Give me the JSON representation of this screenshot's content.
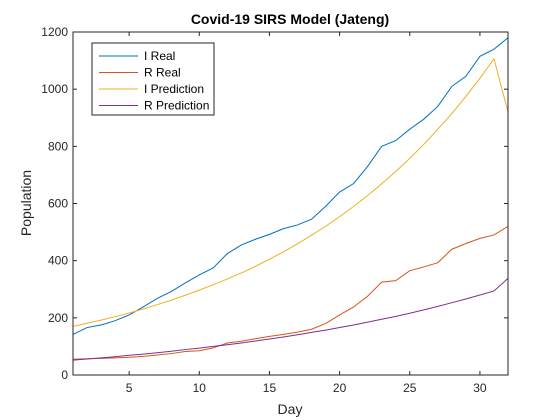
{
  "chart_data": {
    "type": "line",
    "title": "Covid-19 SIRS Model (Jateng)",
    "xlabel": "Day",
    "ylabel": "Population",
    "xlim": [
      1,
      32
    ],
    "ylim": [
      0,
      1200
    ],
    "xticks": [
      5,
      10,
      15,
      20,
      25,
      30
    ],
    "yticks": [
      0,
      200,
      400,
      600,
      800,
      1000,
      1200
    ],
    "grid": false,
    "legend_position": "top-left",
    "x": [
      1,
      2,
      3,
      4,
      5,
      6,
      7,
      8,
      9,
      10,
      11,
      12,
      13,
      14,
      15,
      16,
      17,
      18,
      19,
      20,
      21,
      22,
      23,
      24,
      25,
      26,
      27,
      28,
      29,
      30,
      31,
      32
    ],
    "series": [
      {
        "name": "I Real",
        "color": "#0072bd",
        "values": [
          142,
          166,
          175,
          190,
          210,
          238,
          268,
          292,
          322,
          350,
          375,
          425,
          455,
          475,
          492,
          512,
          525,
          545,
          590,
          640,
          670,
          730,
          800,
          820,
          860,
          895,
          940,
          1010,
          1045,
          1115,
          1140,
          1180
        ]
      },
      {
        "name": "R Real",
        "color": "#d95319",
        "values": [
          55,
          57,
          58,
          60,
          62,
          65,
          70,
          75,
          82,
          85,
          95,
          112,
          118,
          127,
          135,
          142,
          150,
          160,
          180,
          210,
          238,
          276,
          325,
          330,
          365,
          378,
          393,
          440,
          460,
          478,
          490,
          520
        ]
      },
      {
        "name": "I Prediction",
        "color": "#edb120",
        "values": [
          170,
          181,
          192,
          204,
          217,
          231,
          246,
          262,
          279,
          297,
          316,
          336,
          357,
          380,
          405,
          431,
          459,
          489,
          520,
          554,
          590,
          628,
          669,
          712,
          758,
          807,
          860,
          915,
          975,
          1038,
          1106,
          920
        ]
      },
      {
        "name": "R Prediction",
        "color": "#7e2f8e",
        "values": [
          52,
          56,
          60,
          64,
          69,
          73,
          78,
          83,
          89,
          94,
          100,
          106,
          112,
          119,
          126,
          133,
          141,
          149,
          157,
          166,
          175,
          185,
          195,
          205,
          216,
          228,
          240,
          253,
          266,
          280,
          294,
          338
        ]
      }
    ]
  }
}
